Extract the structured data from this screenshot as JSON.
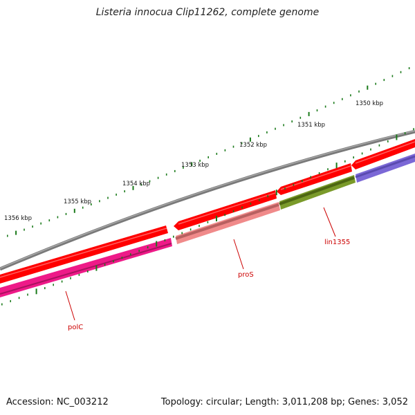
{
  "title": "Listeria innocua Clip11262, complete genome",
  "footer": {
    "accession": "Accession: NC_003212",
    "stats": "Topology: circular; Length: 3,011,208 bp; Genes: 3,052"
  },
  "ticks": [
    {
      "label": "1350 kbp"
    },
    {
      "label": "1351 kbp"
    },
    {
      "label": "1352 kbp"
    },
    {
      "label": "1353 kbp"
    },
    {
      "label": "1354 kbp"
    },
    {
      "label": "1355 kbp"
    },
    {
      "label": "1356 kbp"
    }
  ],
  "genes": [
    {
      "name": "polC",
      "color": "#ee1a88"
    },
    {
      "name": "proS",
      "color": "#f08080"
    },
    {
      "name": "lin1355",
      "color": "#6b8e23"
    },
    {
      "name": "",
      "color": "#7b68d6"
    }
  ],
  "colors": {
    "backbone": "#808080",
    "forward_strand": "#ff0000",
    "tick": "#1a7a1a",
    "label": "#cc0000"
  }
}
